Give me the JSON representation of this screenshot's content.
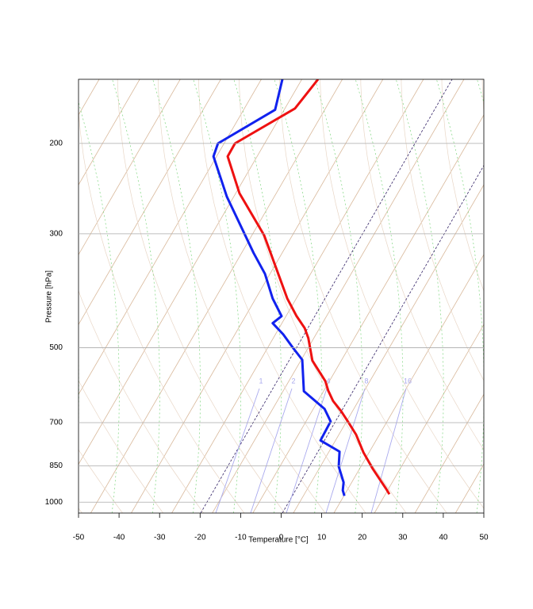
{
  "chart_data": {
    "type": "skew-t",
    "x_label": "Temperature [°C]",
    "y_label": "Pressure [hPa]",
    "xlim": [
      -50,
      50
    ],
    "xticks": [
      -50,
      -40,
      -30,
      -20,
      -10,
      0,
      10,
      20,
      30,
      40,
      50
    ],
    "ylim": [
      1050,
      150
    ],
    "yticks": [
      200,
      300,
      500,
      700,
      850,
      1000
    ],
    "y_log": true,
    "grid": true,
    "mixing_ratio_labels": [
      1,
      2,
      4,
      8,
      16
    ],
    "series": [
      {
        "color": "#ee1111",
        "x": [
          26.7,
          25.9,
          22.6,
          20.3,
          18.5,
          16.7,
          14.8,
          12.8,
          11.6,
          10.9,
          7.7,
          6.7,
          5.8,
          3.8,
          1.5,
          -0.5,
          -4.2,
          -10.3,
          -13.2,
          -11.4,
          3.4,
          9.1
        ],
        "values": [
          965,
          942,
          861,
          800,
          739,
          701,
          665,
          635,
          606,
          581,
          530,
          479,
          458,
          434,
          401,
          363,
          302,
          250,
          212,
          200,
          171,
          150
        ]
      },
      {
        "color": "#1122ee",
        "x": [
          15.6,
          15.2,
          15.4,
          14.2,
          14.4,
          9.7,
          12.2,
          10.7,
          5.6,
          5.2,
          2.8,
          0.5,
          -2.1,
          0.1,
          -2.1,
          -4.0,
          -6.8,
          -13.4,
          -16.7,
          -15.6,
          -1.5,
          0.3
        ],
        "values": [
          972,
          948,
          915,
          852,
          797,
          758,
          696,
          658,
          608,
          528,
          499,
          471,
          448,
          434,
          401,
          359,
          327,
          254,
          212,
          200,
          172,
          150
        ]
      }
    ]
  }
}
